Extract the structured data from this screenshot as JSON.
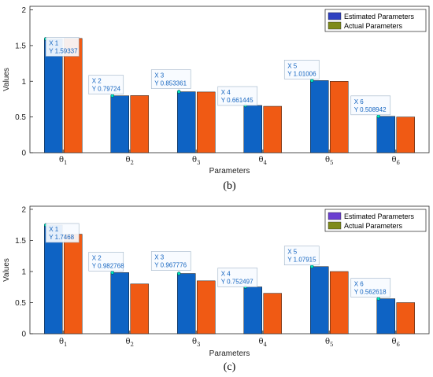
{
  "chart_data": [
    {
      "type": "bar",
      "panel_label": "(b)",
      "xlabel": "Parameters",
      "ylabel": "Values",
      "ylim": [
        0,
        2.05
      ],
      "yticks": [
        0,
        0.5,
        1,
        1.5,
        2
      ],
      "ytick_labels": [
        "0",
        "0.5",
        "1",
        "1.5",
        "2"
      ],
      "grid": false,
      "legend_position": "top-right",
      "categories": [
        {
          "base": "θ",
          "sub": "1"
        },
        {
          "base": "θ",
          "sub": "2"
        },
        {
          "base": "θ",
          "sub": "3"
        },
        {
          "base": "θ",
          "sub": "4"
        },
        {
          "base": "θ",
          "sub": "5"
        },
        {
          "base": "θ",
          "sub": "6"
        }
      ],
      "series": [
        {
          "name": "Estimated Parameters",
          "color": "#0e63c4",
          "legend_color": "#2d3fc0",
          "values": [
            1.59337,
            0.79724,
            0.853361,
            0.661445,
            1.01006,
            0.508942
          ]
        },
        {
          "name": "Actual Parameters",
          "color": "#f05a14",
          "legend_color": "#7e8a1a",
          "values": [
            1.6,
            0.8,
            0.85,
            0.65,
            1.0,
            0.5
          ]
        }
      ],
      "datatips": [
        {
          "x_text": "X 1",
          "y_text": "Y 1.59337"
        },
        {
          "x_text": "X 2",
          "y_text": "Y 0.79724"
        },
        {
          "x_text": "X 3",
          "y_text": "Y 0.853361"
        },
        {
          "x_text": "X 4",
          "y_text": "Y 0.661445"
        },
        {
          "x_text": "X 5",
          "y_text": "Y 1.01006"
        },
        {
          "x_text": "X 6",
          "y_text": "Y 0.508942"
        }
      ]
    },
    {
      "type": "bar",
      "panel_label": "(c)",
      "xlabel": "Parameters",
      "ylabel": "Values",
      "ylim": [
        0,
        2.05
      ],
      "yticks": [
        0,
        0.5,
        1,
        1.5,
        2
      ],
      "ytick_labels": [
        "0",
        "0.5",
        "1",
        "1.5",
        "2"
      ],
      "grid": false,
      "legend_position": "top-right",
      "categories": [
        {
          "base": "θ",
          "sub": "1"
        },
        {
          "base": "θ",
          "sub": "2"
        },
        {
          "base": "θ",
          "sub": "3"
        },
        {
          "base": "θ",
          "sub": "4"
        },
        {
          "base": "θ",
          "sub": "5"
        },
        {
          "base": "θ",
          "sub": "6"
        }
      ],
      "series": [
        {
          "name": "Estimated Parameters",
          "color": "#0e63c4",
          "legend_color": "#6a3fd0",
          "values": [
            1.7468,
            0.982768,
            0.967776,
            0.752497,
            1.07915,
            0.562618
          ]
        },
        {
          "name": "Actual Parameters",
          "color": "#f05a14",
          "legend_color": "#7e8a1a",
          "values": [
            1.6,
            0.8,
            0.85,
            0.65,
            1.0,
            0.5
          ]
        }
      ],
      "datatips": [
        {
          "x_text": "X 1",
          "y_text": "Y 1.7468"
        },
        {
          "x_text": "X 2",
          "y_text": "Y 0.982768"
        },
        {
          "x_text": "X 3",
          "y_text": "Y 0.967776"
        },
        {
          "x_text": "X 4",
          "y_text": "Y 0.752497"
        },
        {
          "x_text": "X 5",
          "y_text": "Y 1.07915"
        },
        {
          "x_text": "X 6",
          "y_text": "Y 0.562618"
        }
      ]
    }
  ]
}
